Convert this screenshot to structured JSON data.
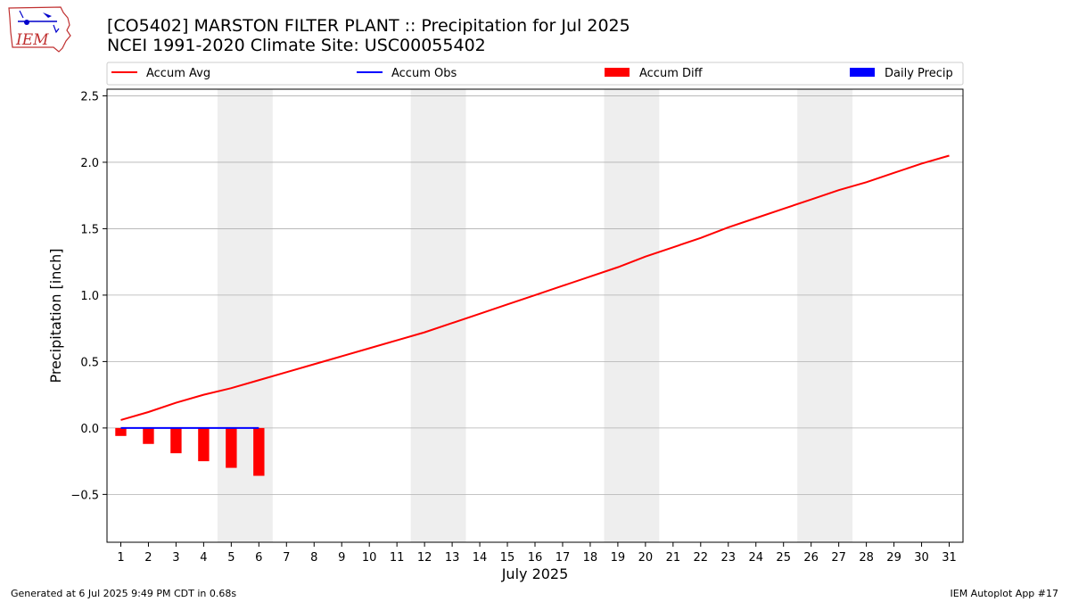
{
  "header": {
    "title": "[CO5402] MARSTON FILTER PLANT :: Precipitation for Jul 2025",
    "subtitle": "NCEI 1991-2020 Climate Site: USC00055402"
  },
  "logo": {
    "text": "IEM",
    "icon": "iowa-map-weather-logo-icon"
  },
  "footer": {
    "left": "Generated at 6 Jul 2025 9:49 PM CDT in 0.68s",
    "right": "IEM Autoplot App #17"
  },
  "chart_data": {
    "type": "line",
    "xlabel": "July 2025",
    "ylabel": "Precipitation [inch]",
    "ylim": [
      -0.86,
      2.55
    ],
    "xlim": [
      0.5,
      31.5
    ],
    "yticks": [
      -0.5,
      0.0,
      0.5,
      1.0,
      1.5,
      2.0,
      2.5
    ],
    "ytick_labels": [
      "−0.5",
      "0.0",
      "0.5",
      "1.0",
      "1.5",
      "2.0",
      "2.5"
    ],
    "xticks": [
      1,
      2,
      3,
      4,
      5,
      6,
      7,
      8,
      9,
      10,
      11,
      12,
      13,
      14,
      15,
      16,
      17,
      18,
      19,
      20,
      21,
      22,
      23,
      24,
      25,
      26,
      27,
      28,
      29,
      30,
      31
    ],
    "grid": "horizontal",
    "legend_position": "top",
    "weekend_shading": [
      [
        4.5,
        6.5
      ],
      [
        11.5,
        13.5
      ],
      [
        18.5,
        20.5
      ],
      [
        25.5,
        27.5
      ]
    ],
    "colors": {
      "avg": "#ff0000",
      "obs": "#0000ff",
      "diff": "#ff0000",
      "daily": "#0000ff",
      "weekend": "#eeeeee",
      "grid": "#b0b0b0"
    },
    "legend": [
      {
        "label": "Accum Avg",
        "kind": "line",
        "color": "#ff0000"
      },
      {
        "label": "Accum Obs",
        "kind": "line",
        "color": "#0000ff"
      },
      {
        "label": "Accum Diff",
        "kind": "bar",
        "color": "#ff0000"
      },
      {
        "label": "Daily Precip",
        "kind": "bar",
        "color": "#0000ff"
      }
    ],
    "series": [
      {
        "name": "Accum Avg",
        "type": "line",
        "x": [
          1,
          2,
          3,
          4,
          5,
          6,
          7,
          8,
          9,
          10,
          11,
          12,
          13,
          14,
          15,
          16,
          17,
          18,
          19,
          20,
          21,
          22,
          23,
          24,
          25,
          26,
          27,
          28,
          29,
          30,
          31
        ],
        "values": [
          0.06,
          0.12,
          0.19,
          0.25,
          0.3,
          0.36,
          0.42,
          0.48,
          0.54,
          0.6,
          0.66,
          0.72,
          0.79,
          0.86,
          0.93,
          1.0,
          1.07,
          1.14,
          1.21,
          1.29,
          1.36,
          1.43,
          1.51,
          1.58,
          1.65,
          1.72,
          1.79,
          1.85,
          1.92,
          1.99,
          2.05
        ]
      },
      {
        "name": "Accum Obs",
        "type": "line",
        "x": [
          1,
          2,
          3,
          4,
          5,
          6
        ],
        "values": [
          0.0,
          0.0,
          0.0,
          0.0,
          0.0,
          0.0
        ]
      },
      {
        "name": "Accum Diff",
        "type": "bar",
        "x": [
          1,
          2,
          3,
          4,
          5,
          6
        ],
        "values": [
          -0.06,
          -0.12,
          -0.19,
          -0.25,
          -0.3,
          -0.36
        ]
      },
      {
        "name": "Daily Precip",
        "type": "bar",
        "x": [
          1,
          2,
          3,
          4,
          5,
          6
        ],
        "values": [
          0.0,
          0.0,
          0.0,
          0.0,
          0.0,
          0.0
        ]
      }
    ]
  }
}
